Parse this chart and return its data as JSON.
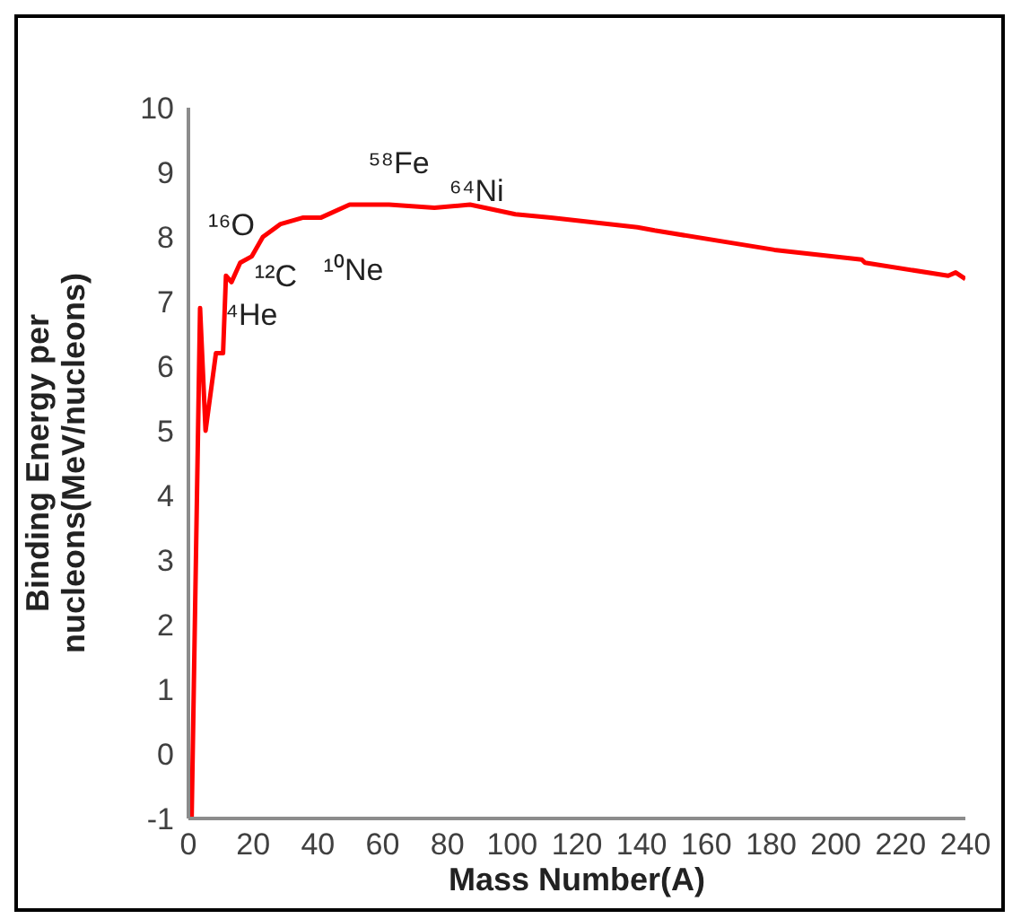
{
  "chart_data": {
    "type": "line",
    "xlabel": "Mass Number(A)",
    "ylabel": "Binding Energy per nucleons(MeV/nucleons)",
    "x": [
      1,
      3.6,
      5.3,
      8.5,
      10.7,
      11.6,
      13.3,
      16,
      19.6,
      23,
      28.5,
      35.5,
      41,
      49.8,
      62,
      76,
      87,
      101,
      112,
      138.7,
      144,
      181,
      208,
      209,
      234.7,
      237,
      240
    ],
    "series": [
      {
        "color": "#ff0000",
        "values": [
          -1,
          6.9,
          5.0,
          6.2,
          6.2,
          7.4,
          7.3,
          7.6,
          7.7,
          8.0,
          8.2,
          8.3,
          8.3,
          8.5,
          8.5,
          8.45,
          8.5,
          8.35,
          8.3,
          8.15,
          8.1,
          7.8,
          7.65,
          7.6,
          7.4,
          7.45,
          7.35
        ]
      }
    ],
    "xlim": [
      0,
      240
    ],
    "xticks": [
      0,
      20,
      40,
      60,
      80,
      100,
      120,
      140,
      160,
      180,
      200,
      220,
      240
    ],
    "ylim": [
      -1,
      10
    ],
    "yticks": [
      -1,
      0,
      1,
      2,
      3,
      4,
      5,
      6,
      7,
      8,
      9,
      10
    ],
    "annotations": [
      "⁴He",
      "¹²C",
      "¹⁶O",
      "¹⁰Ne",
      "⁵⁸Fe",
      "⁶⁴Ni"
    ],
    "grid": false,
    "legend": false,
    "marker": "none",
    "line_style": "solid"
  }
}
